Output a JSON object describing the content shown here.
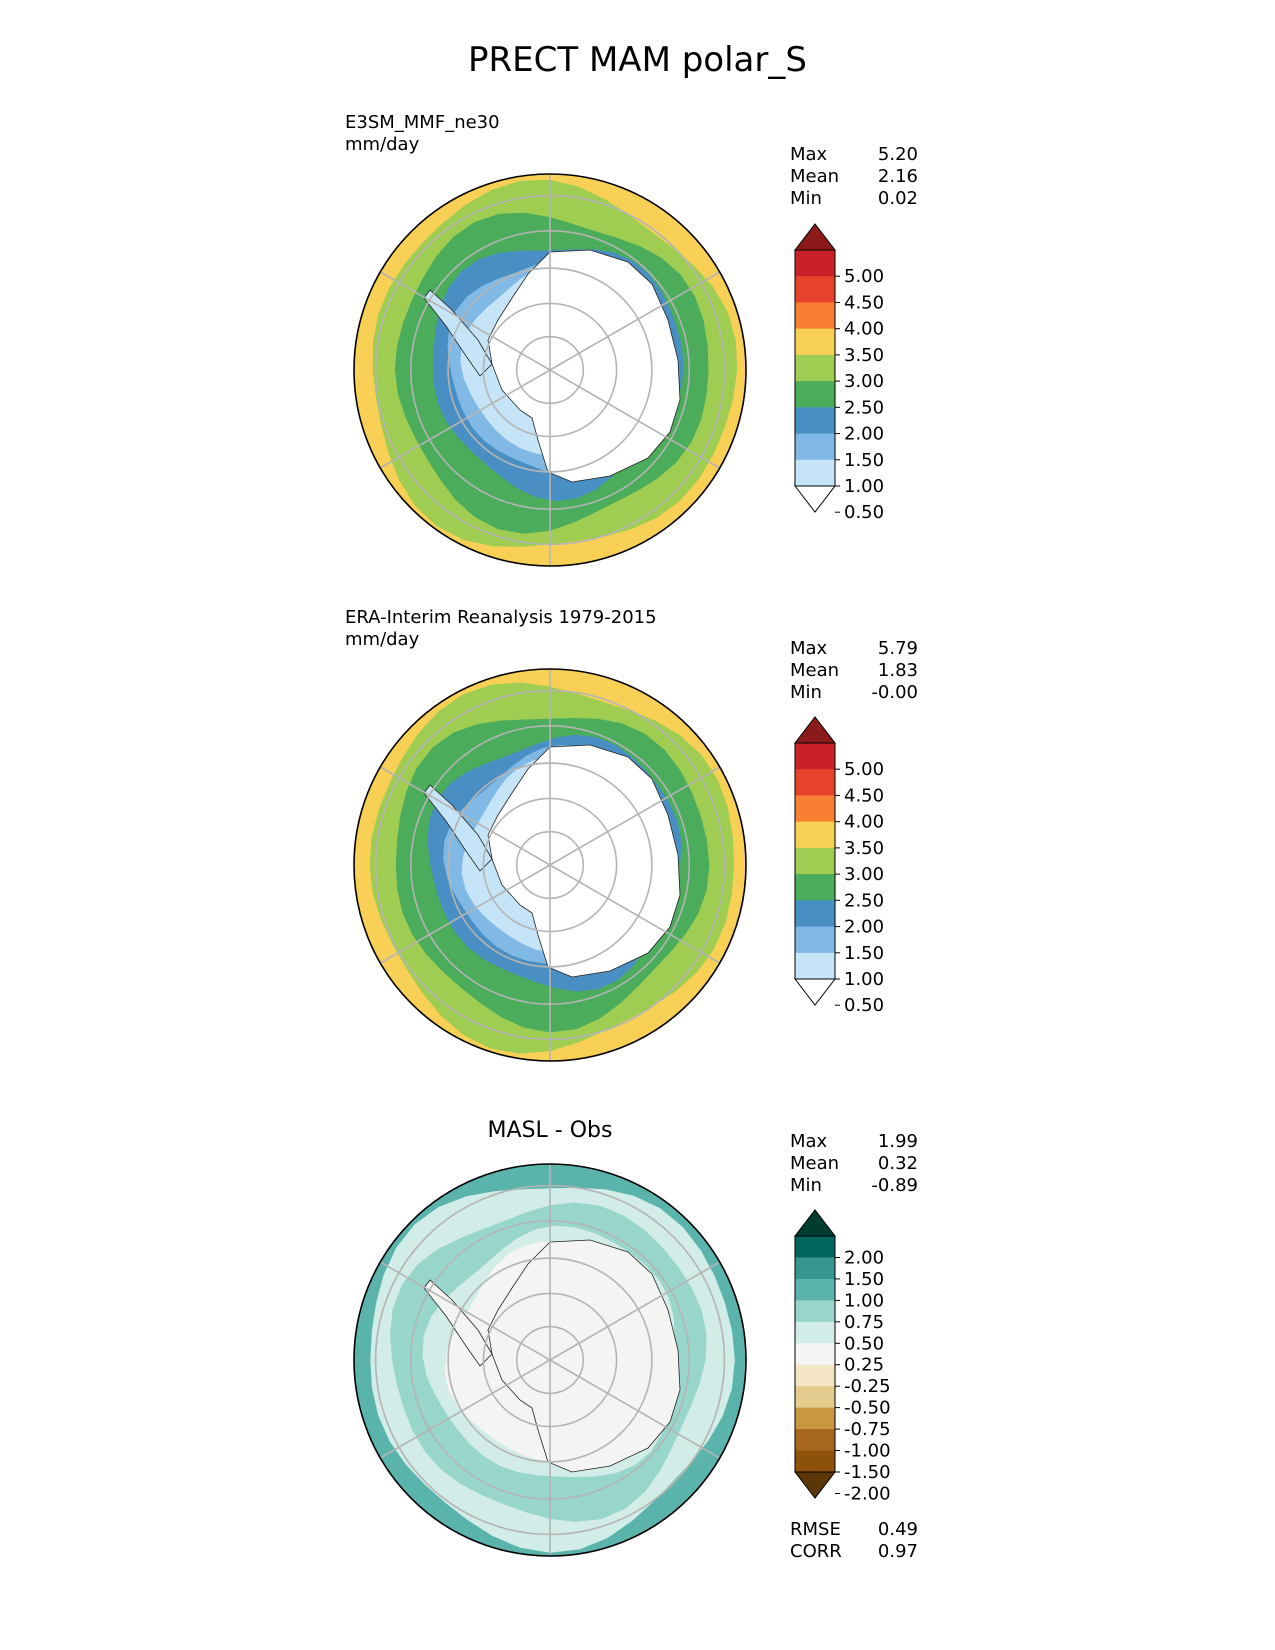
{
  "figure_title": "PRECT MAM polar_S",
  "chart_data": [
    {
      "type": "heatmap",
      "projection": "south polar stereographic",
      "title_line1": "E3SM_MMF_ne30",
      "title_line2": "mm/day",
      "stats": [
        {
          "label": "Max",
          "value": "5.20"
        },
        {
          "label": "Mean",
          "value": "2.16"
        },
        {
          "label": "Min",
          "value": "0.02"
        }
      ],
      "colorbar": {
        "levels": [
          "5.00",
          "4.50",
          "4.00",
          "3.50",
          "3.00",
          "2.50",
          "2.00",
          "1.50",
          "1.00",
          "0.50"
        ],
        "colors": [
          "#8b1a1a",
          "#c9202a",
          "#e5432b",
          "#f98033",
          "#f9d056",
          "#9fcd52",
          "#4bac5c",
          "#4a8fc3",
          "#80b9e5",
          "#c6e4f8",
          "#ffffff"
        ]
      },
      "rings": {
        "land": "#ffffff",
        "coast": "#c6e4f8",
        "near": "#80b9e5",
        "mid": "#4a8fc3",
        "ocean": "#4bac5c",
        "outer": "#9fcd52",
        "edge": "#f9d056"
      }
    },
    {
      "type": "heatmap",
      "projection": "south polar stereographic",
      "title_line1": "ERA-Interim Reanalysis 1979-2015",
      "title_line2": "mm/day",
      "stats": [
        {
          "label": "Max",
          "value": "5.79"
        },
        {
          "label": "Mean",
          "value": "1.83"
        },
        {
          "label": "Min",
          "value": "-0.00"
        }
      ],
      "colorbar": {
        "levels": [
          "5.00",
          "4.50",
          "4.00",
          "3.50",
          "3.00",
          "2.50",
          "2.00",
          "1.50",
          "1.00",
          "0.50"
        ],
        "colors": [
          "#8b1a1a",
          "#c9202a",
          "#e5432b",
          "#f98033",
          "#f9d056",
          "#9fcd52",
          "#4bac5c",
          "#4a8fc3",
          "#80b9e5",
          "#c6e4f8",
          "#ffffff"
        ]
      },
      "rings": {
        "land": "#ffffff",
        "coast": "#c6e4f8",
        "near": "#80b9e5",
        "mid": "#4a8fc3",
        "ocean": "#4bac5c",
        "outer": "#9fcd52",
        "edge": "#f9d056"
      }
    },
    {
      "type": "heatmap",
      "projection": "south polar stereographic",
      "title": "MASL - Obs",
      "stats": [
        {
          "label": "Max",
          "value": "1.99"
        },
        {
          "label": "Mean",
          "value": "0.32"
        },
        {
          "label": "Min",
          "value": "-0.89"
        }
      ],
      "metrics": [
        {
          "label": "RMSE",
          "value": "0.49"
        },
        {
          "label": "CORR",
          "value": "0.97"
        }
      ],
      "colorbar": {
        "levels": [
          "2.00",
          "1.50",
          "1.00",
          "0.75",
          "0.50",
          "0.25",
          "-0.25",
          "-0.50",
          "-0.75",
          "-1.00",
          "-1.50",
          "-2.00"
        ],
        "colors": [
          "#013c30",
          "#01665e",
          "#35978f",
          "#5ab4ac",
          "#98d5ca",
          "#d2ece7",
          "#f4f4f2",
          "#f5e7c6",
          "#e5cc8f",
          "#c8973f",
          "#a6671d",
          "#8c510a",
          "#5c3607"
        ]
      },
      "rings": {
        "land": "#f4f4f2",
        "coast": "#f4f4f2",
        "near": "#f4f4f2",
        "mid": "#d2ece7",
        "ocean": "#98d5ca",
        "outer": "#d2ece7",
        "edge": "#5ab4ac"
      }
    }
  ]
}
